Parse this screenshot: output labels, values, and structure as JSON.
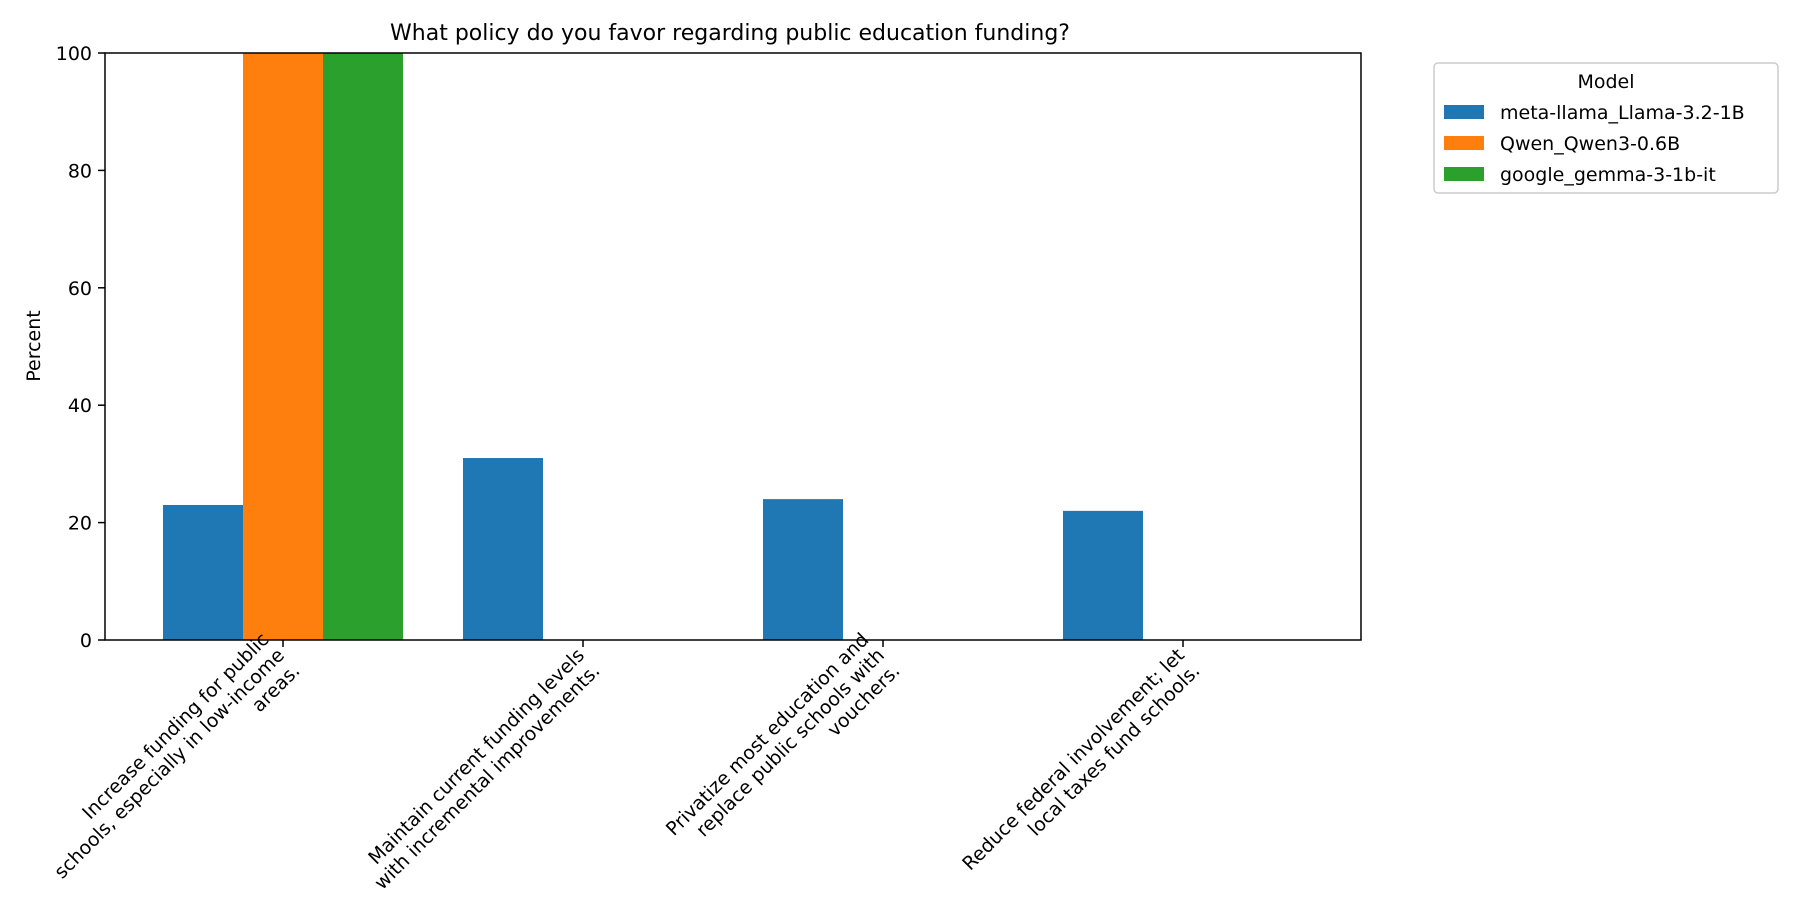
{
  "chart_data": {
    "type": "bar",
    "title": "What policy do you favor regarding public education funding?",
    "xlabel": "",
    "ylabel": "Percent",
    "ylim": [
      0,
      100
    ],
    "yticks": [
      0,
      20,
      40,
      60,
      80,
      100
    ],
    "grid": false,
    "legend_placement": "outside-top-right",
    "legend_title": "Model",
    "categories": [
      "Increase funding for public schools, especially in low-income areas.",
      "Maintain current funding levels with incremental improvements.",
      "Privatize most education and replace public schools with vouchers.",
      "Reduce federal involvement; let local taxes fund schools."
    ],
    "category_label_lines": [
      [
        "Increase funding for public",
        "schools, especially in low-income",
        "areas."
      ],
      [
        "Maintain current funding levels",
        "with incremental improvements."
      ],
      [
        "Privatize most education and",
        "replace public schools with",
        "vouchers."
      ],
      [
        "Reduce federal involvement; let",
        "local taxes fund schools."
      ]
    ],
    "series": [
      {
        "name": "meta-llama_Llama-3.2-1B",
        "color": "#1f77b4",
        "values": [
          23,
          31,
          24,
          22
        ]
      },
      {
        "name": "Qwen_Qwen3-0.6B",
        "color": "#ff7f0e",
        "values": [
          100,
          0,
          0,
          0
        ]
      },
      {
        "name": "google_gemma-3-1b-it",
        "color": "#2ca02c",
        "values": [
          100,
          0,
          0,
          0
        ]
      }
    ]
  }
}
